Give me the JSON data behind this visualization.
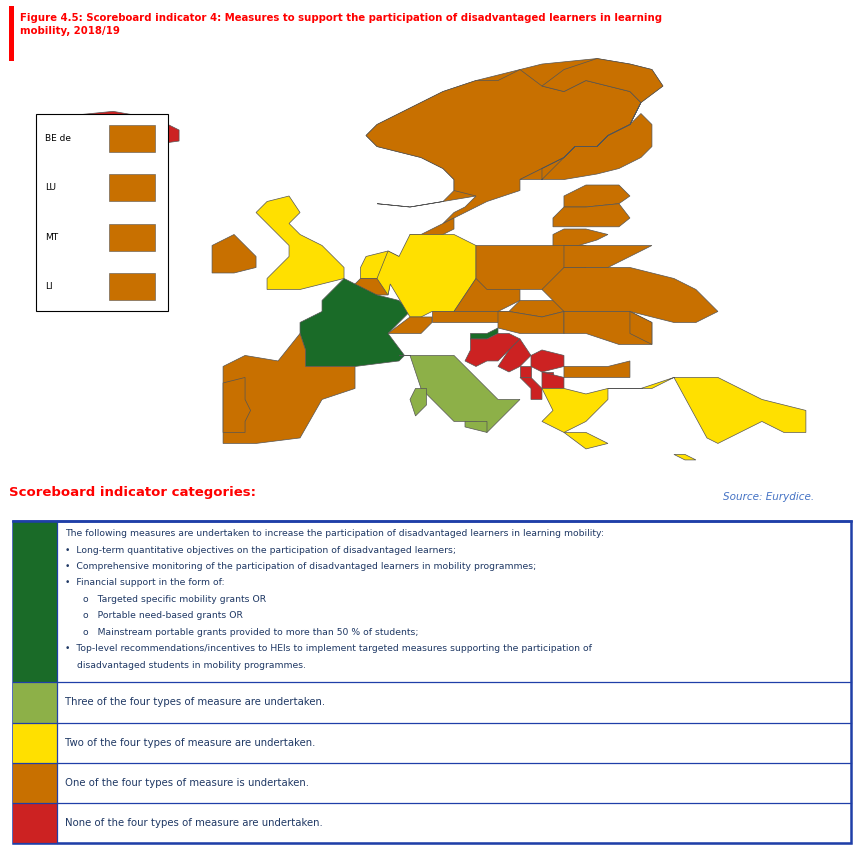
{
  "title_line1": "Figure 4.5: Scoreboard indicator 4: Measures to support the participation of disadvantaged learners in learning",
  "title_line2": "mobility, 2018/19",
  "title_color": "#FF0000",
  "source_text": "Source: Eurydice.",
  "source_color": "#4472C4",
  "scoreboard_title": "Scoreboard indicator categories:",
  "scoreboard_title_color": "#FF0000",
  "legend_border_color": "#1F3FA8",
  "text_color": "#1F3864",
  "colors": {
    "dark_green": "#1A6B28",
    "light_green": "#8DB048",
    "yellow": "#FFE000",
    "orange": "#C87000",
    "red": "#CC2222",
    "white": "#FFFFFF",
    "gray": "#BBBBBB",
    "edge": "#555555"
  },
  "country_colors": {
    "Iceland": "red",
    "Norway": "orange",
    "Finland": "orange",
    "Sweden": "orange",
    "Estonia": "orange",
    "Latvia": "orange",
    "Lithuania": "orange",
    "Denmark": "orange",
    "Ireland": "orange",
    "United Kingdom": "yellow",
    "Netherlands": "yellow",
    "Belgium": "orange",
    "Germany": "yellow",
    "Poland": "orange",
    "Czech Republic": "orange",
    "Slovakia": "orange",
    "Austria": "orange",
    "Hungary": "orange",
    "Romania": "orange",
    "France": "dark_green",
    "Luxembourg": "orange",
    "Switzerland": "orange",
    "Slovenia": "dark_green",
    "Croatia": "red",
    "Italy": "light_green",
    "Portugal": "orange",
    "Spain": "orange",
    "Bosnia": "red",
    "Serbia": "red",
    "Montenegro": "red",
    "Macedonia": "red",
    "Albania": "red",
    "Greece": "yellow",
    "Bulgaria": "orange",
    "Turkey": "yellow",
    "Cyprus": "yellow",
    "Malta": "orange",
    "Kosovo": "red",
    "Belarus": "orange",
    "Ukraine": "orange",
    "Moldova": "orange",
    "Lithuania2": "orange",
    "Latvia2": "orange"
  },
  "inset_labels": [
    "BE de",
    "LU",
    "MT",
    "LI"
  ],
  "inset_colors": [
    "orange",
    "orange",
    "orange",
    "orange"
  ],
  "legend_items": [
    {
      "color": "dark_green",
      "text_lines": [
        "The following measures are undertaken to increase the participation of disadvantaged learners in learning mobility:",
        "•  Long-term quantitative objectives on the participation of disadvantaged learners;",
        "•  Comprehensive monitoring of the participation of disadvantaged learners in mobility programmes;",
        "•  Financial support in the form of:",
        "      o   Targeted specific mobility grants OR",
        "      o   Portable need-based grants OR",
        "      o   Mainstream portable grants provided to more than 50 % of students;",
        "•  Top-level recommendations/incentives to HEIs to implement targeted measures supporting the participation of",
        "    disadvantaged students in mobility programmes."
      ]
    },
    {
      "color": "light_green",
      "text": "Three of the four types of measure are undertaken."
    },
    {
      "color": "yellow",
      "text": "Two of the four types of measure are undertaken."
    },
    {
      "color": "orange",
      "text": "One of the four types of measure is undertaken."
    },
    {
      "color": "red",
      "text": "None of the four types of measure are undertaken."
    }
  ]
}
